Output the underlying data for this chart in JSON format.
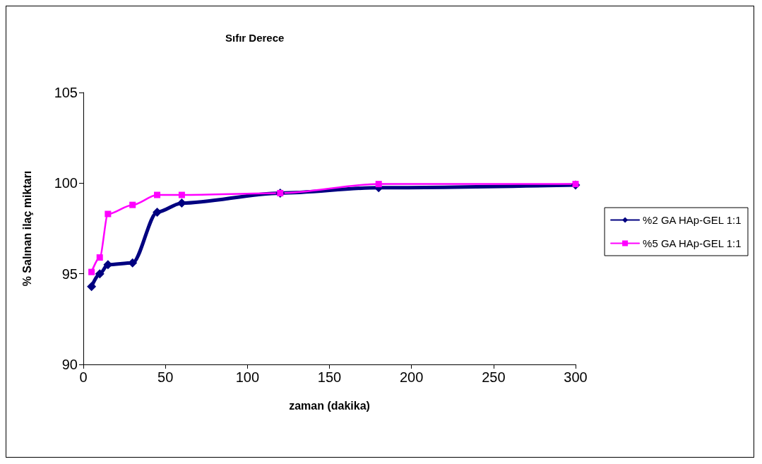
{
  "chart_data": {
    "type": "line",
    "title": "Sıfır Derece",
    "xlabel": "zaman (dakika)",
    "ylabel": "% Salınan ilaç miktarı",
    "x": [
      5,
      10,
      15,
      30,
      45,
      60,
      120,
      180,
      300
    ],
    "series": [
      {
        "name": "%2 GA HAp-GEL 1:1",
        "color": "#000080",
        "marker": "diamond",
        "values": [
          94.3,
          95.0,
          95.5,
          95.6,
          98.4,
          98.9,
          99.45,
          99.75,
          99.9
        ]
      },
      {
        "name": "%5 GA HAp-GEL 1:1",
        "color": "#ff00ff",
        "marker": "square",
        "values": [
          95.1,
          95.9,
          98.3,
          98.8,
          99.35,
          99.35,
          99.45,
          99.95,
          99.95
        ]
      }
    ],
    "xlim": [
      0,
      300
    ],
    "xticks": [
      0,
      50,
      100,
      150,
      200,
      250,
      300
    ],
    "ylim": [
      90,
      105
    ],
    "yticks": [
      90,
      95,
      100,
      105
    ],
    "grid": false,
    "legend": "right",
    "line_style": "solid"
  }
}
